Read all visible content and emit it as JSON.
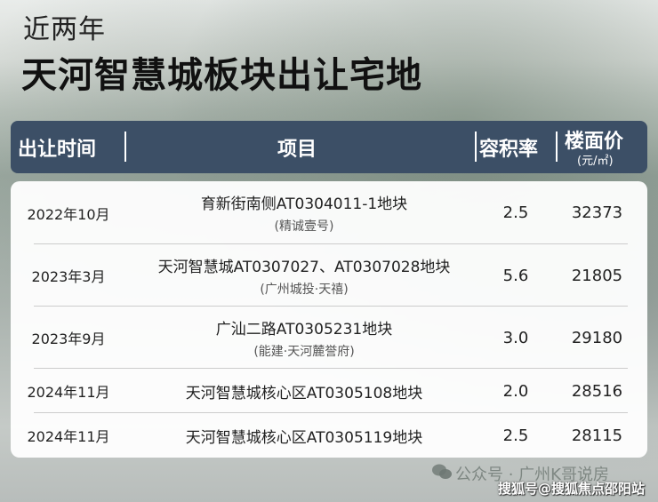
{
  "subtitle": "近两年",
  "title": "天河智慧城板块出让宅地",
  "header": {
    "date": "出让时间",
    "project": "项目",
    "far": "容积率",
    "price": "楼面价",
    "price_unit": "(元/㎡)"
  },
  "rows": [
    {
      "date": "2022年10月",
      "project": "育新街南侧AT0304011-1地块",
      "sub": "(精诚壹号)",
      "far": "2.5",
      "price": "32373"
    },
    {
      "date": "2023年3月",
      "project": "天河智慧城AT0307027、AT0307028地块",
      "sub": "(广州城投·天禧)",
      "far": "5.6",
      "price": "21805"
    },
    {
      "date": "2023年9月",
      "project": "广汕二路AT0305231地块",
      "sub": "(能建·天河麓誉府)",
      "far": "3.0",
      "price": "29180"
    },
    {
      "date": "2024年11月",
      "project": "天河智慧城核心区AT0305108地块",
      "sub": "",
      "far": "2.0",
      "price": "28516"
    },
    {
      "date": "2024年11月",
      "project": "天河智慧城核心区AT0305119地块",
      "sub": "",
      "far": "2.5",
      "price": "28115"
    }
  ],
  "watermark": {
    "wechat": "公众号 · 广州K哥说房",
    "sohu": "搜狐号@搜狐焦点邵阳站"
  }
}
